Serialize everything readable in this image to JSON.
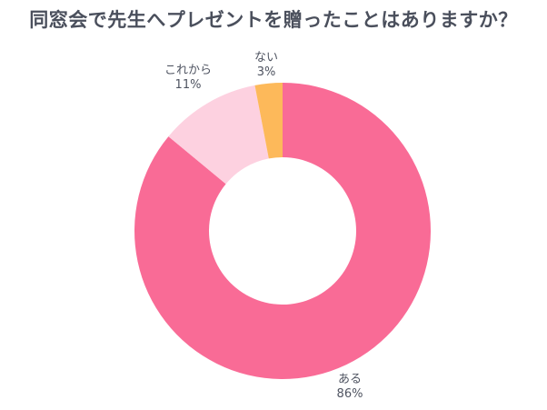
{
  "title": "同窓会で先生へプレゼントを贈ったことはありますか？",
  "chart_data": {
    "type": "pie",
    "variant": "donut",
    "title": "同窓会で先生へプレゼントを贈ったことはありますか？",
    "categories": [
      "ある",
      "これから",
      "ない"
    ],
    "values": [
      86,
      11,
      3
    ],
    "unit": "%",
    "colors": [
      "#f96b96",
      "#fdd1e0",
      "#fdb95a"
    ],
    "start_angle": "12 o'clock, clockwise",
    "legend": "none (direct labels)"
  },
  "labels": [
    {
      "name": "ある",
      "value": "86%"
    },
    {
      "name": "これから",
      "value": "11%"
    },
    {
      "name": "ない",
      "value": "3%"
    }
  ]
}
